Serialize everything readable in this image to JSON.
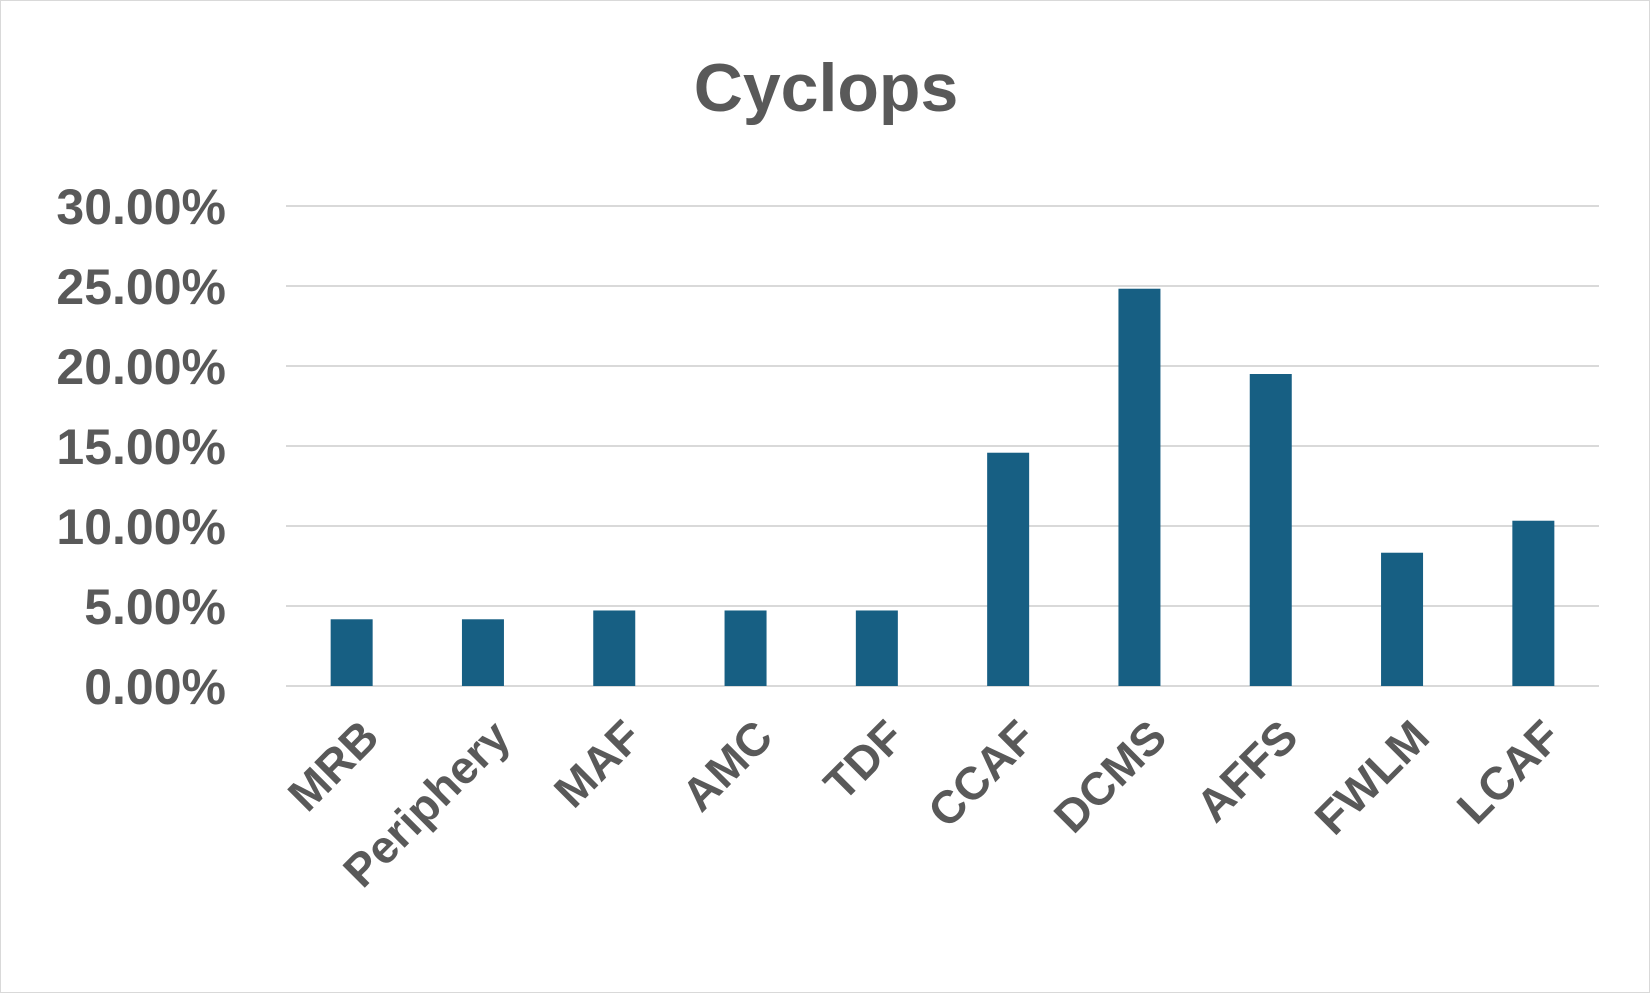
{
  "chart_data": {
    "type": "bar",
    "title": "Cyclops",
    "xlabel": "",
    "ylabel": "",
    "categories": [
      "MRB",
      "Periphery",
      "MAF",
      "AMC",
      "TDF",
      "CCAF",
      "DCMS",
      "AFFS",
      "FWLM",
      "LCAF"
    ],
    "values": [
      4.17,
      4.17,
      4.72,
      4.72,
      4.72,
      14.58,
      24.83,
      19.5,
      8.33,
      10.33
    ],
    "ylim": [
      0,
      30
    ],
    "yticks": [
      0,
      5,
      10,
      15,
      20,
      25,
      30
    ],
    "ytick_labels": [
      "0.00%",
      "5.00%",
      "10.00%",
      "15.00%",
      "20.00%",
      "25.00%",
      "30.00%"
    ],
    "grid": true,
    "legend": "none",
    "colors": {
      "bar": "#175f83",
      "text": "#595959",
      "grid": "#d9d9d9"
    }
  }
}
